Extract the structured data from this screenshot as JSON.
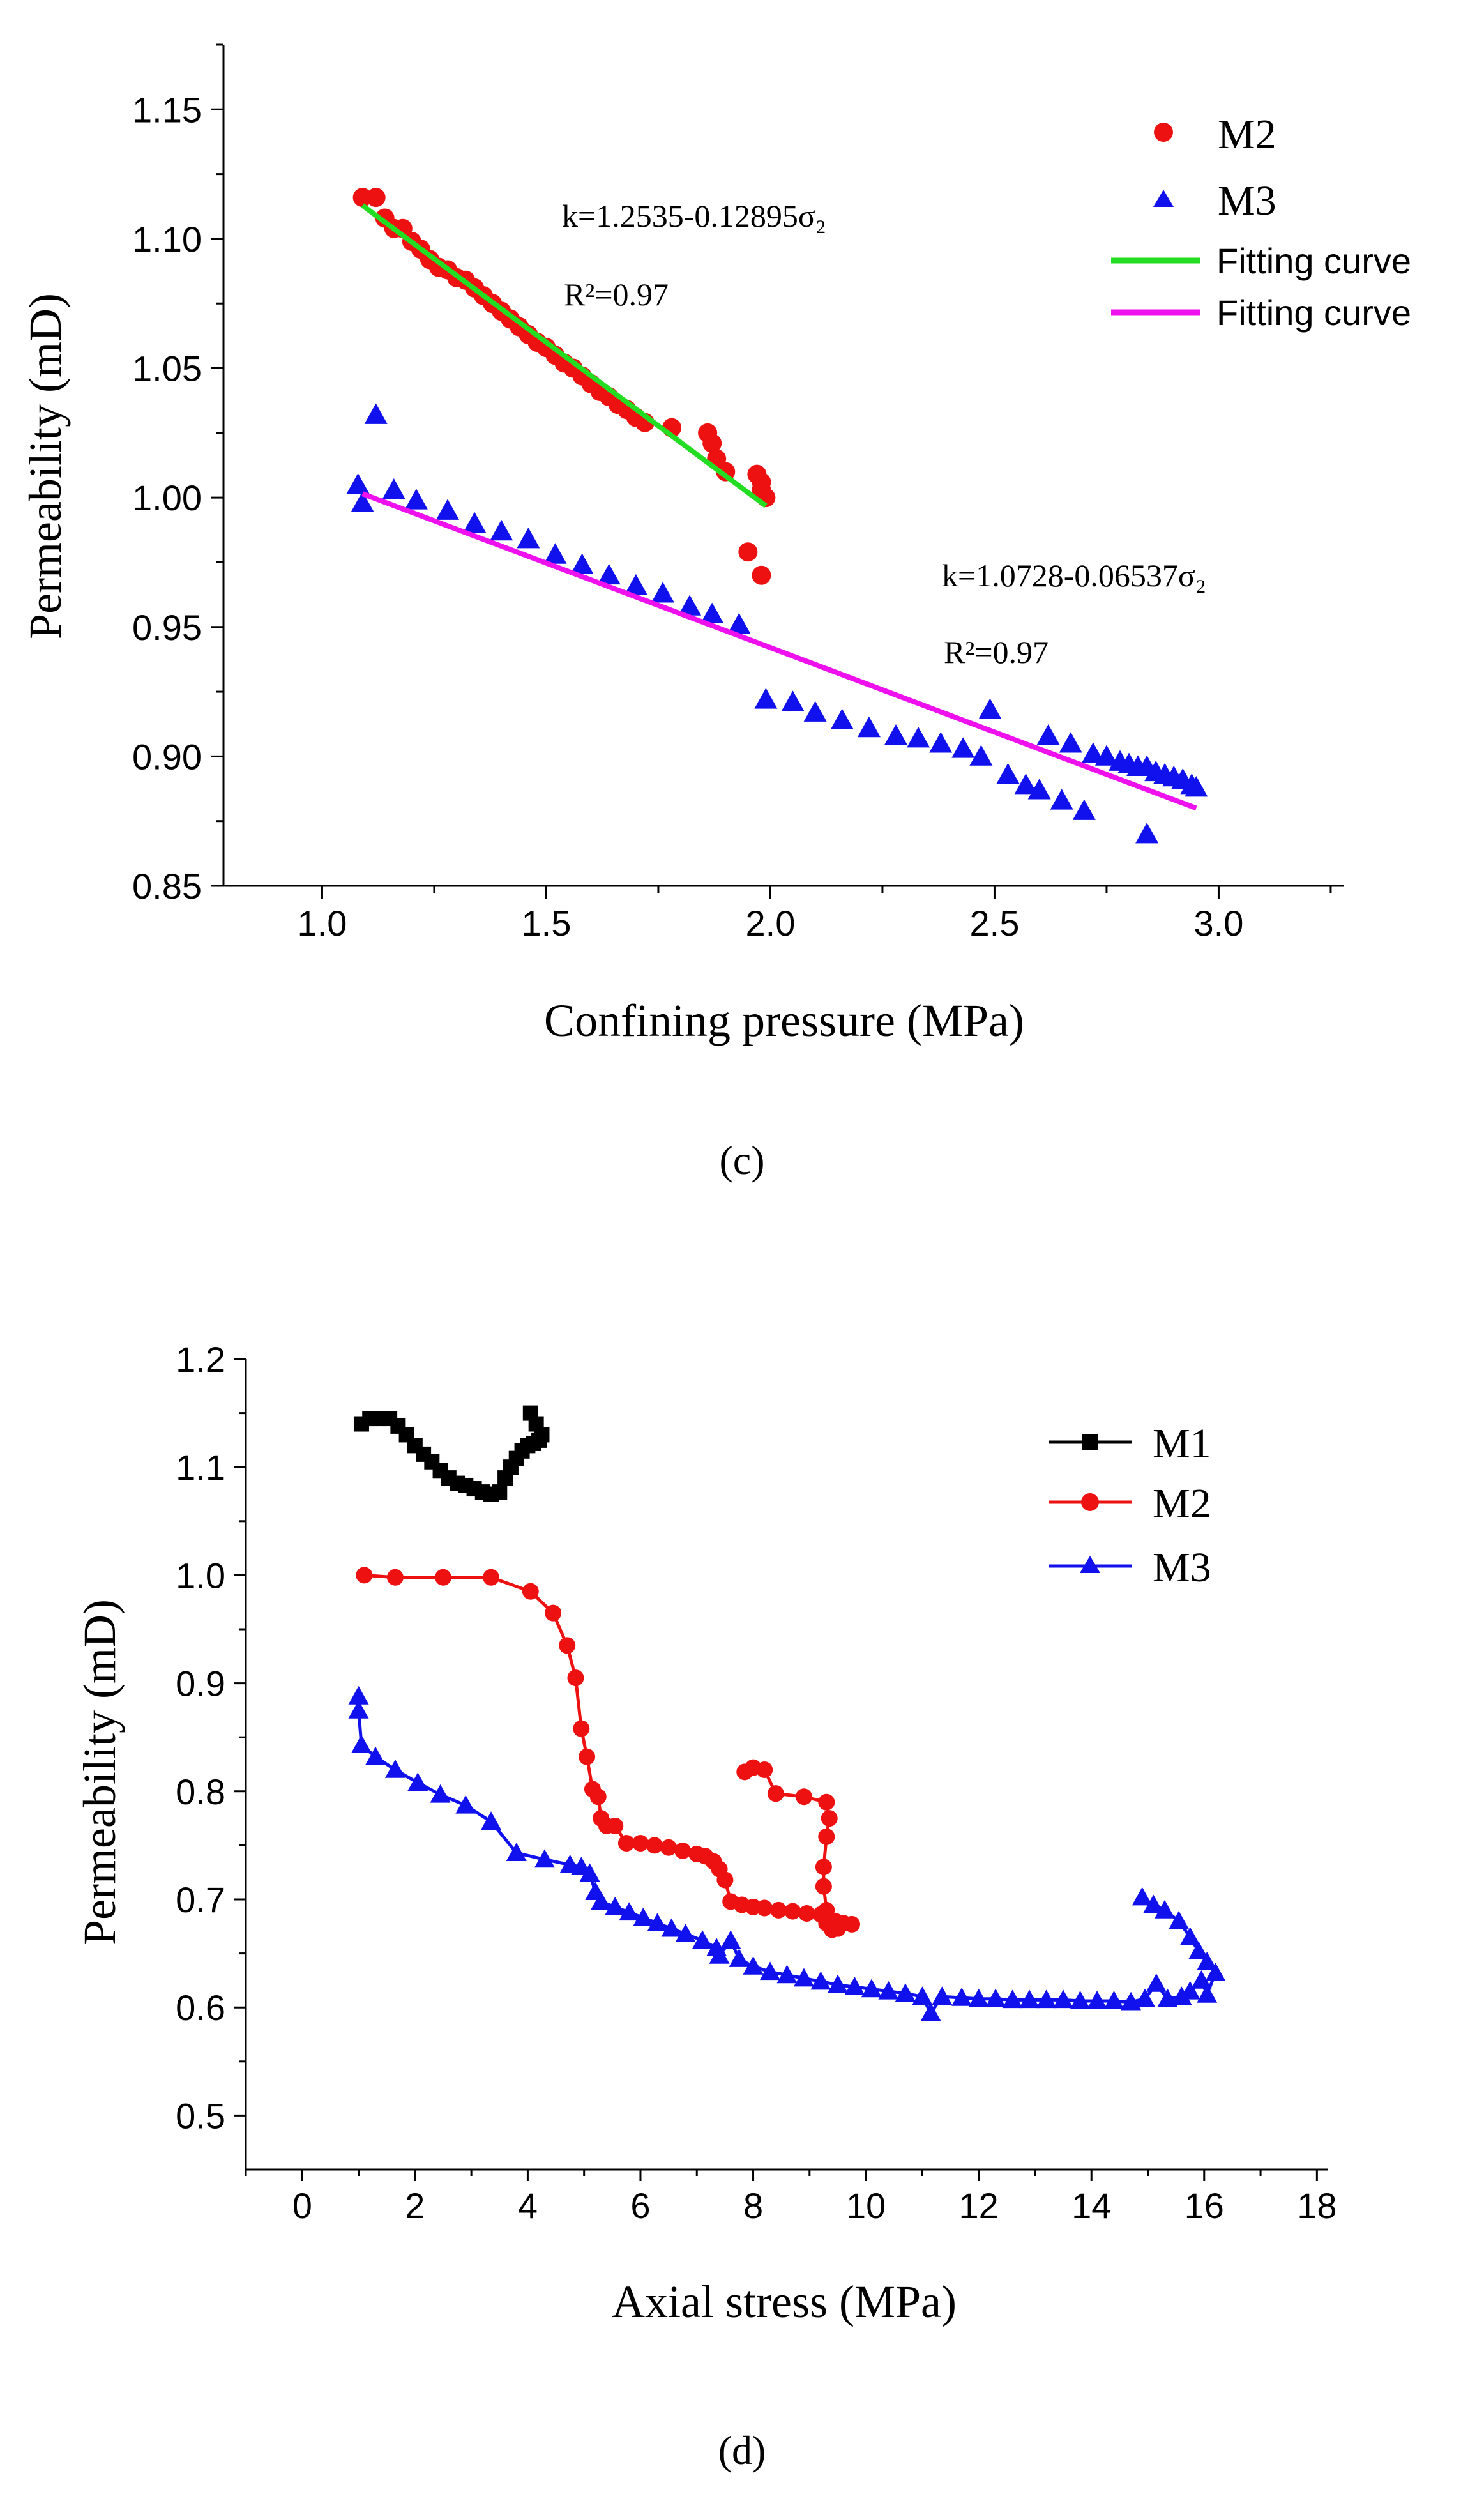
{
  "chart_data": [
    {
      "type": "scatter",
      "panel_label": "(c)",
      "xlabel": "Confining pressure (MPa)",
      "ylabel": "Permeability (mD)",
      "xlim": [
        0.78,
        3.28
      ],
      "ylim": [
        0.85,
        1.175
      ],
      "xticks": [
        "1.0",
        "1.5",
        "2.0",
        "2.5",
        "3.0"
      ],
      "yticks": [
        "0.85",
        "0.90",
        "0.95",
        "1.00",
        "1.05",
        "1.10",
        "1.15"
      ],
      "legend_position": "top-right",
      "annotations": [
        {
          "text": "k=1.2535-0.12895σ₂",
          "at": [
            1.62,
            1.11
          ]
        },
        {
          "text": "R²=0.97",
          "at": [
            1.69,
            1.082
          ]
        },
        {
          "text": "k=1.0728-0.06537σ₂",
          "at": [
            2.35,
            0.963
          ]
        },
        {
          "text": "R²=0.97",
          "at": [
            2.42,
            0.93
          ]
        }
      ],
      "series": [
        {
          "name": "M2",
          "marker": "circle",
          "color": "#ee1111",
          "points": [
            [
              1.09,
              1.116
            ],
            [
              1.12,
              1.116
            ],
            [
              1.14,
              1.108
            ],
            [
              1.16,
              1.104
            ],
            [
              1.18,
              1.104
            ],
            [
              1.2,
              1.099
            ],
            [
              1.22,
              1.096
            ],
            [
              1.24,
              1.092
            ],
            [
              1.26,
              1.089
            ],
            [
              1.28,
              1.088
            ],
            [
              1.3,
              1.085
            ],
            [
              1.32,
              1.084
            ],
            [
              1.34,
              1.081
            ],
            [
              1.36,
              1.078
            ],
            [
              1.38,
              1.075
            ],
            [
              1.4,
              1.072
            ],
            [
              1.42,
              1.069
            ],
            [
              1.44,
              1.066
            ],
            [
              1.46,
              1.063
            ],
            [
              1.48,
              1.06
            ],
            [
              1.5,
              1.058
            ],
            [
              1.52,
              1.055
            ],
            [
              1.54,
              1.052
            ],
            [
              1.56,
              1.05
            ],
            [
              1.58,
              1.047
            ],
            [
              1.6,
              1.044
            ],
            [
              1.62,
              1.041
            ],
            [
              1.64,
              1.039
            ],
            [
              1.66,
              1.036
            ],
            [
              1.68,
              1.034
            ],
            [
              1.7,
              1.031
            ],
            [
              1.72,
              1.029
            ],
            [
              1.78,
              1.027
            ],
            [
              1.86,
              1.025
            ],
            [
              1.87,
              1.021
            ],
            [
              1.88,
              1.015
            ],
            [
              1.9,
              1.01
            ],
            [
              1.95,
              0.979
            ],
            [
              1.97,
              1.009
            ],
            [
              1.98,
              1.006
            ],
            [
              1.98,
              1.003
            ],
            [
              1.99,
              1.0
            ],
            [
              1.98,
              0.97
            ]
          ]
        },
        {
          "name": "M3",
          "marker": "triangle",
          "color": "#1111ee",
          "points": [
            [
              1.08,
              1.005
            ],
            [
              1.09,
              0.998
            ],
            [
              1.12,
              1.032
            ],
            [
              1.16,
              1.003
            ],
            [
              1.21,
              0.999
            ],
            [
              1.28,
              0.995
            ],
            [
              1.34,
              0.99
            ],
            [
              1.4,
              0.987
            ],
            [
              1.46,
              0.984
            ],
            [
              1.52,
              0.978
            ],
            [
              1.58,
              0.974
            ],
            [
              1.64,
              0.97
            ],
            [
              1.7,
              0.966
            ],
            [
              1.76,
              0.963
            ],
            [
              1.82,
              0.958
            ],
            [
              1.87,
              0.955
            ],
            [
              1.93,
              0.951
            ],
            [
              1.99,
              0.922
            ],
            [
              2.05,
              0.921
            ],
            [
              2.1,
              0.917
            ],
            [
              2.16,
              0.914
            ],
            [
              2.22,
              0.911
            ],
            [
              2.28,
              0.908
            ],
            [
              2.33,
              0.907
            ],
            [
              2.38,
              0.905
            ],
            [
              2.43,
              0.903
            ],
            [
              2.47,
              0.9
            ],
            [
              2.49,
              0.918
            ],
            [
              2.53,
              0.893
            ],
            [
              2.57,
              0.889
            ],
            [
              2.6,
              0.887
            ],
            [
              2.62,
              0.908
            ],
            [
              2.65,
              0.883
            ],
            [
              2.67,
              0.905
            ],
            [
              2.7,
              0.879
            ],
            [
              2.72,
              0.901
            ],
            [
              2.75,
              0.9
            ],
            [
              2.78,
              0.898
            ],
            [
              2.8,
              0.897
            ],
            [
              2.82,
              0.896
            ],
            [
              2.84,
              0.896
            ],
            [
              2.84,
              0.87
            ],
            [
              2.86,
              0.894
            ],
            [
              2.88,
              0.893
            ],
            [
              2.9,
              0.892
            ],
            [
              2.92,
              0.891
            ],
            [
              2.94,
              0.889
            ],
            [
              2.95,
              0.888
            ]
          ]
        },
        {
          "name": "Fitting curve",
          "marker": "line",
          "color": "#22dd22",
          "points": [
            [
              1.09,
              1.1129
            ],
            [
              1.99,
              0.9968
            ]
          ]
        },
        {
          "name": "Fitting curve",
          "marker": "line",
          "color": "#ee11ee",
          "points": [
            [
              1.09,
              1.0015
            ],
            [
              2.95,
              0.88
            ]
          ]
        }
      ]
    },
    {
      "type": "line",
      "panel_label": "(d)",
      "xlabel": "Axial stress (MPa)",
      "ylabel": "Permeability (mD)",
      "xlim": [
        -1.0,
        18.2
      ],
      "ylim": [
        0.45,
        1.2
      ],
      "xticks": [
        "0",
        "2",
        "4",
        "6",
        "8",
        "10",
        "12",
        "14",
        "16",
        "18"
      ],
      "yticks": [
        "0.5",
        "0.6",
        "0.7",
        "0.8",
        "0.9",
        "1.0",
        "1.1",
        "1.2"
      ],
      "legend_position": "top-right",
      "series": [
        {
          "name": "M1",
          "marker": "square",
          "color": "#000000",
          "points": [
            [
              1.05,
              1.14
            ],
            [
              1.2,
              1.145
            ],
            [
              1.35,
              1.145
            ],
            [
              1.55,
              1.145
            ],
            [
              1.7,
              1.138
            ],
            [
              1.85,
              1.13
            ],
            [
              2.0,
              1.12
            ],
            [
              2.15,
              1.112
            ],
            [
              2.3,
              1.105
            ],
            [
              2.45,
              1.097
            ],
            [
              2.6,
              1.09
            ],
            [
              2.75,
              1.085
            ],
            [
              2.9,
              1.083
            ],
            [
              3.05,
              1.08
            ],
            [
              3.2,
              1.077
            ],
            [
              3.35,
              1.075
            ],
            [
              3.5,
              1.077
            ],
            [
              3.6,
              1.09
            ],
            [
              3.7,
              1.1
            ],
            [
              3.8,
              1.108
            ],
            [
              3.9,
              1.115
            ],
            [
              4.0,
              1.12
            ],
            [
              4.1,
              1.122
            ],
            [
              4.2,
              1.125
            ],
            [
              4.25,
              1.13
            ],
            [
              4.15,
              1.14
            ],
            [
              4.05,
              1.15
            ]
          ]
        },
        {
          "name": "M2",
          "marker": "circle",
          "color": "#ee1111",
          "points": [
            [
              1.1,
              1.0
            ],
            [
              1.65,
              0.998
            ],
            [
              2.5,
              0.998
            ],
            [
              3.35,
              0.998
            ],
            [
              4.05,
              0.985
            ],
            [
              4.45,
              0.965
            ],
            [
              4.7,
              0.935
            ],
            [
              4.85,
              0.905
            ],
            [
              4.95,
              0.858
            ],
            [
              5.05,
              0.832
            ],
            [
              5.15,
              0.802
            ],
            [
              5.25,
              0.795
            ],
            [
              5.3,
              0.775
            ],
            [
              5.4,
              0.768
            ],
            [
              5.55,
              0.768
            ],
            [
              5.75,
              0.752
            ],
            [
              6.0,
              0.752
            ],
            [
              6.25,
              0.75
            ],
            [
              6.5,
              0.748
            ],
            [
              6.75,
              0.745
            ],
            [
              7.0,
              0.742
            ],
            [
              7.15,
              0.74
            ],
            [
              7.3,
              0.735
            ],
            [
              7.4,
              0.728
            ],
            [
              7.5,
              0.718
            ],
            [
              7.6,
              0.698
            ],
            [
              7.8,
              0.695
            ],
            [
              8.0,
              0.693
            ],
            [
              8.2,
              0.692
            ],
            [
              8.45,
              0.69
            ],
            [
              8.7,
              0.689
            ],
            [
              8.95,
              0.687
            ],
            [
              9.2,
              0.686
            ],
            [
              9.3,
              0.678
            ],
            [
              9.4,
              0.672
            ],
            [
              9.45,
              0.68
            ],
            [
              9.6,
              0.678
            ],
            [
              9.75,
              0.677
            ],
            [
              9.5,
              0.673
            ],
            [
              9.3,
              0.69
            ],
            [
              9.25,
              0.712
            ],
            [
              9.25,
              0.73
            ],
            [
              9.3,
              0.758
            ],
            [
              9.35,
              0.775
            ],
            [
              9.3,
              0.79
            ],
            [
              8.9,
              0.795
            ],
            [
              8.4,
              0.798
            ],
            [
              8.2,
              0.82
            ],
            [
              8.0,
              0.822
            ],
            [
              7.85,
              0.818
            ]
          ]
        },
        {
          "name": "M3",
          "marker": "triangle",
          "color": "#1111ee",
          "points": [
            [
              1.0,
              0.888
            ],
            [
              1.0,
              0.875
            ],
            [
              1.05,
              0.843
            ],
            [
              1.3,
              0.832
            ],
            [
              1.65,
              0.82
            ],
            [
              2.05,
              0.808
            ],
            [
              2.45,
              0.797
            ],
            [
              2.9,
              0.787
            ],
            [
              3.35,
              0.772
            ],
            [
              3.8,
              0.743
            ],
            [
              4.3,
              0.737
            ],
            [
              4.75,
              0.732
            ],
            [
              4.95,
              0.73
            ],
            [
              5.1,
              0.724
            ],
            [
              5.2,
              0.707
            ],
            [
              5.3,
              0.698
            ],
            [
              5.55,
              0.693
            ],
            [
              5.8,
              0.688
            ],
            [
              6.05,
              0.683
            ],
            [
              6.3,
              0.678
            ],
            [
              6.55,
              0.673
            ],
            [
              6.8,
              0.668
            ],
            [
              7.1,
              0.662
            ],
            [
              7.35,
              0.655
            ],
            [
              7.4,
              0.648
            ],
            [
              7.6,
              0.662
            ],
            [
              7.75,
              0.645
            ],
            [
              8.0,
              0.638
            ],
            [
              8.3,
              0.633
            ],
            [
              8.6,
              0.63
            ],
            [
              8.9,
              0.627
            ],
            [
              9.2,
              0.624
            ],
            [
              9.5,
              0.621
            ],
            [
              9.8,
              0.619
            ],
            [
              10.1,
              0.617
            ],
            [
              10.4,
              0.615
            ],
            [
              10.7,
              0.613
            ],
            [
              11.0,
              0.61
            ],
            [
              11.15,
              0.595
            ],
            [
              11.35,
              0.61
            ],
            [
              11.7,
              0.609
            ],
            [
              12.0,
              0.608
            ],
            [
              12.3,
              0.608
            ],
            [
              12.6,
              0.607
            ],
            [
              12.9,
              0.607
            ],
            [
              13.2,
              0.607
            ],
            [
              13.5,
              0.607
            ],
            [
              13.8,
              0.606
            ],
            [
              14.1,
              0.606
            ],
            [
              14.4,
              0.606
            ],
            [
              14.7,
              0.605
            ],
            [
              14.95,
              0.608
            ],
            [
              15.15,
              0.622
            ],
            [
              15.35,
              0.608
            ],
            [
              15.6,
              0.61
            ],
            [
              15.75,
              0.615
            ],
            [
              15.95,
              0.625
            ],
            [
              16.05,
              0.612
            ],
            [
              16.2,
              0.632
            ],
            [
              16.05,
              0.642
            ],
            [
              15.9,
              0.652
            ],
            [
              15.75,
              0.665
            ],
            [
              15.55,
              0.68
            ],
            [
              15.3,
              0.69
            ],
            [
              15.1,
              0.695
            ],
            [
              14.9,
              0.702
            ]
          ]
        }
      ]
    }
  ]
}
